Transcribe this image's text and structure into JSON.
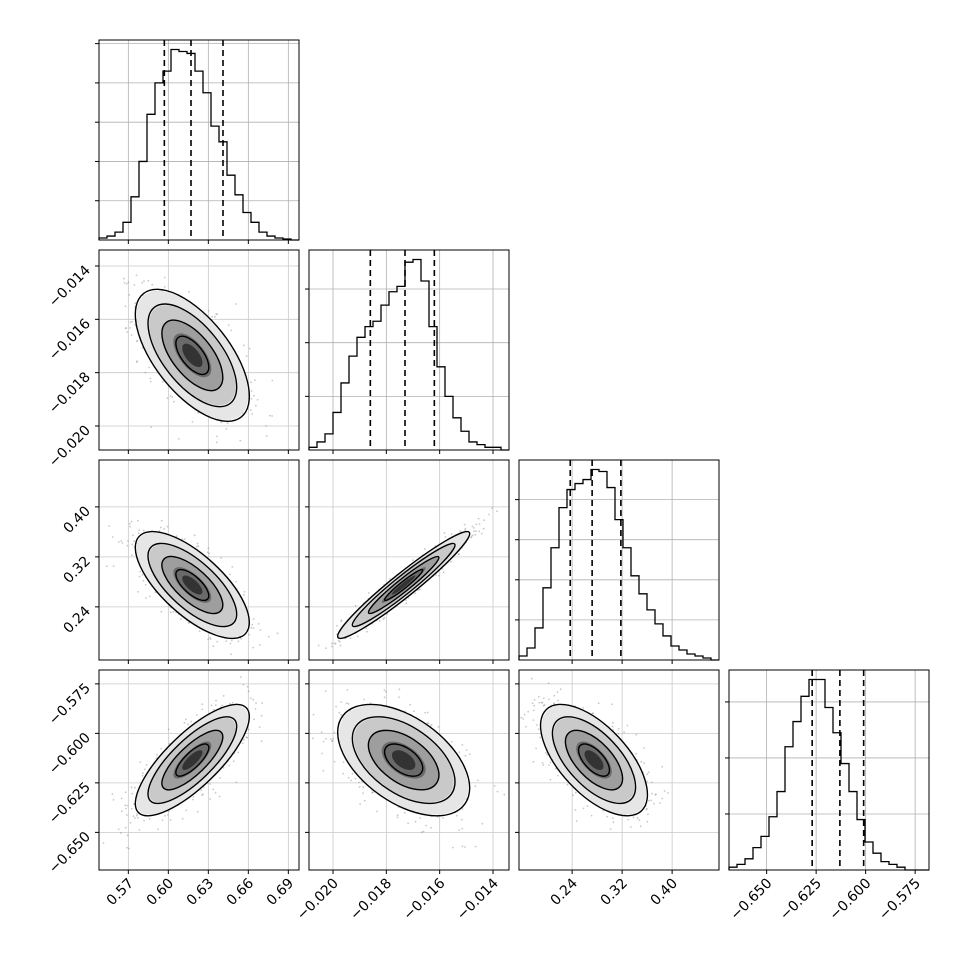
{
  "chart_data": {
    "type": "corner",
    "title": "",
    "parameters": [
      {
        "range": [
          0.548,
          0.698
        ],
        "ticks": [
          0.57,
          0.6,
          0.63,
          0.66,
          0.69
        ],
        "tick_labels": [
          "0.57",
          "0.60",
          "0.63",
          "0.66",
          "0.69"
        ],
        "quantiles": [
          0.597,
          0.617,
          0.641
        ],
        "mean": 0.618,
        "sd": 0.019
      },
      {
        "range": [
          -0.0209,
          -0.0134
        ],
        "ticks": [
          -0.02,
          -0.018,
          -0.016,
          -0.014
        ],
        "tick_labels": [
          "−0.020",
          "−0.018",
          "−0.016",
          "−0.014"
        ],
        "quantiles": [
          -0.0186,
          -0.0173,
          -0.0162
        ],
        "mean": -0.01735,
        "sd": 0.0011
      },
      {
        "range": [
          0.155,
          0.475
        ],
        "ticks": [
          0.24,
          0.32,
          0.4
        ],
        "tick_labels": [
          "0.24",
          "0.32",
          "0.40"
        ],
        "quantiles": [
          0.237,
          0.272,
          0.318
        ],
        "mean": 0.275,
        "sd": 0.038
      },
      {
        "range": [
          -0.669,
          -0.568
        ],
        "ticks": [
          -0.65,
          -0.625,
          -0.6,
          -0.575
        ],
        "tick_labels": [
          "−0.650",
          "−0.625",
          "−0.600",
          "−0.575"
        ],
        "quantiles": [
          -0.627,
          -0.613,
          -0.601
        ],
        "mean": -0.6135,
        "sd": 0.0125
      }
    ],
    "histograms": [
      {
        "param": 0,
        "bins": [
          0.548,
          0.698
        ],
        "counts": [
          1,
          2,
          4,
          9,
          22,
          40,
          64,
          80,
          86,
          97,
          96,
          95,
          86,
          75,
          58,
          50,
          33,
          23,
          14,
          9,
          4,
          2,
          1,
          0.5,
          0
        ]
      },
      {
        "param": 1,
        "bins": [
          -0.0209,
          -0.0134
        ],
        "counts": [
          1,
          3,
          6,
          14,
          25,
          35,
          42,
          46,
          48,
          54,
          59,
          61,
          70,
          71,
          63,
          46,
          31,
          20,
          12,
          7,
          3,
          2,
          1,
          1,
          0
        ]
      },
      {
        "param": 2,
        "bins": [
          0.155,
          0.475
        ],
        "counts": [
          2,
          6,
          16,
          36,
          56,
          76,
          85,
          88,
          90,
          95,
          94,
          86,
          70,
          56,
          42,
          33,
          25,
          18,
          12,
          7,
          5,
          3,
          2,
          1,
          0
        ]
      },
      {
        "param": 3,
        "bins": [
          -0.669,
          -0.568
        ],
        "counts": [
          1,
          2,
          4,
          8,
          12,
          19,
          28,
          44,
          53,
          62,
          68,
          68,
          58,
          49,
          38,
          28,
          18,
          10,
          6,
          3,
          2,
          1,
          0,
          0,
          0
        ]
      }
    ],
    "pair_correlations": [
      {
        "x": 0,
        "y": 1,
        "rho": -0.62
      },
      {
        "x": 0,
        "y": 2,
        "rho": -0.7
      },
      {
        "x": 1,
        "y": 2,
        "rho": 0.96
      },
      {
        "x": 0,
        "y": 3,
        "rho": 0.78
      },
      {
        "x": 1,
        "y": 3,
        "rho": -0.5
      },
      {
        "x": 2,
        "y": 3,
        "rho": -0.62
      }
    ],
    "axis_labels": [],
    "grid": true,
    "legend": "none"
  }
}
